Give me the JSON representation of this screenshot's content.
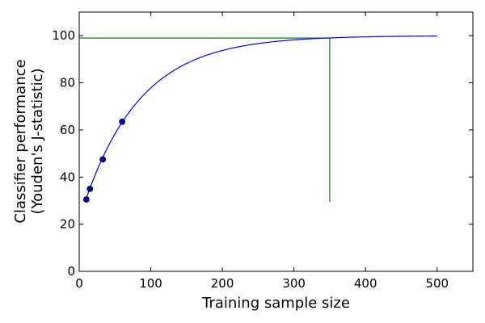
{
  "chart_data": {
    "type": "line",
    "xlabel": "Training sample size",
    "ylabel_lines": [
      "Classifier performance",
      "(Youden's J-statistic)"
    ],
    "xlim": [
      0,
      550
    ],
    "ylim": [
      0,
      110
    ],
    "xticks": [
      0,
      100,
      200,
      300,
      400,
      500
    ],
    "yticks": [
      0,
      20,
      40,
      60,
      80,
      100
    ],
    "grid": false,
    "legend": "none",
    "colors": {
      "curve": "#0000ff",
      "points": "#0000aa",
      "reference": "#008000"
    },
    "curve": {
      "x_start": 10,
      "x_end": 500,
      "asymptote": 100,
      "amplitude": 78.2,
      "rate": 0.0126
    },
    "points": [
      {
        "x": 10,
        "y": 30.5
      },
      {
        "x": 15,
        "y": 35
      },
      {
        "x": 33,
        "y": 47.5
      },
      {
        "x": 60,
        "y": 63.5
      }
    ],
    "reference_lines": {
      "horizontal": {
        "y": 99,
        "x_from": 0,
        "x_to": 350
      },
      "vertical": {
        "x": 350,
        "y_from": 29.5,
        "y_to": 99
      }
    }
  }
}
